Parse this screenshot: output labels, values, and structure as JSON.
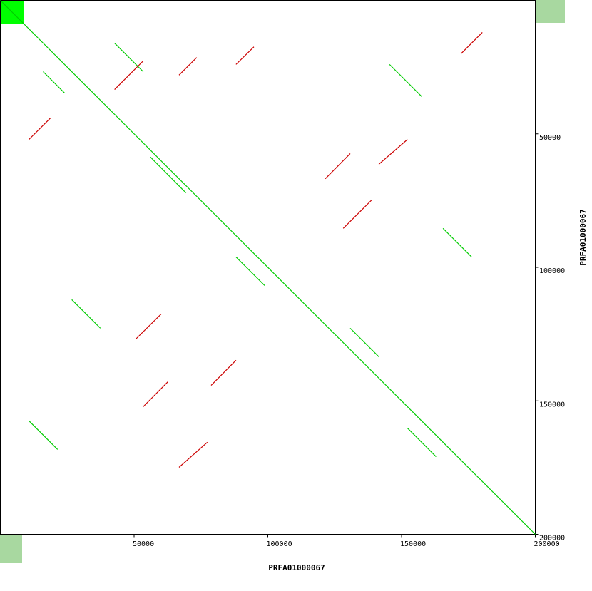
{
  "chart_data": {
    "type": "dotplot",
    "xlabel": "PRFA01000067",
    "ylabel": "PRFA01000067",
    "xlim": [
      0,
      200000
    ],
    "ylim": [
      0,
      200000
    ],
    "xticks": [
      50000,
      100000,
      150000,
      200000
    ],
    "yticks": [
      50000,
      100000,
      150000,
      200000
    ],
    "series": [
      {
        "color": "#00cc00",
        "segments": [
          [
            0,
            0,
            200000,
            200000
          ],
          [
            16000,
            26700,
            24000,
            34700
          ],
          [
            26700,
            112100,
            37400,
            122800
          ],
          [
            42700,
            16000,
            53400,
            26700
          ],
          [
            56100,
            58700,
            69400,
            72100
          ],
          [
            130800,
            122800,
            141500,
            133500
          ],
          [
            145500,
            24000,
            157500,
            36000
          ],
          [
            165500,
            85400,
            176200,
            96100
          ],
          [
            88100,
            96100,
            98800,
            106800
          ],
          [
            152200,
            160200,
            162900,
            170900
          ],
          [
            10700,
            157500,
            21400,
            168200
          ]
        ]
      },
      {
        "color": "#cc0000",
        "segments": [
          [
            10700,
            52100,
            18700,
            44100
          ],
          [
            42700,
            33400,
            53400,
            22700
          ],
          [
            66800,
            28000,
            73400,
            21400
          ],
          [
            88100,
            24000,
            94800,
            17400
          ],
          [
            121500,
            66800,
            130800,
            57400
          ],
          [
            141500,
            61400,
            152200,
            52100
          ],
          [
            172200,
            20000,
            180200,
            12000
          ],
          [
            50700,
            126800,
            60100,
            117500
          ],
          [
            53400,
            152200,
            62700,
            142800
          ],
          [
            78800,
            144200,
            88100,
            134800
          ],
          [
            66800,
            174900,
            77400,
            165500
          ],
          [
            128200,
            85400,
            138800,
            74800
          ]
        ]
      }
    ]
  }
}
